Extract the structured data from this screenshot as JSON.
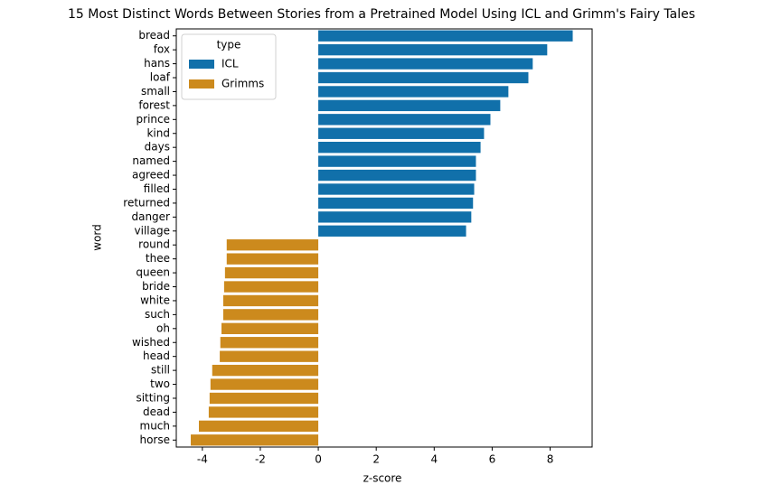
{
  "chart_data": {
    "type": "barh",
    "title": "15 Most Distinct Words Between Stories from a Pretrained Model Using ICL and Grimm's Fairy Tales",
    "x_label": "z-score",
    "y_label": "word",
    "categories": [
      "bread",
      "fox",
      "hans",
      "loaf",
      "small",
      "forest",
      "prince",
      "kind",
      "days",
      "named",
      "agreed",
      "filled",
      "returned",
      "danger",
      "village",
      "round",
      "thee",
      "queen",
      "bride",
      "white",
      "such",
      "oh",
      "wished",
      "head",
      "still",
      "two",
      "sitting",
      "dead",
      "much",
      "horse"
    ],
    "series": [
      {
        "name": "ICL",
        "color": "#1170aa",
        "values": [
          8.78,
          7.9,
          7.4,
          7.25,
          6.56,
          6.28,
          5.94,
          5.72,
          5.6,
          5.44,
          5.44,
          5.38,
          5.34,
          5.28,
          5.1,
          null,
          null,
          null,
          null,
          null,
          null,
          null,
          null,
          null,
          null,
          null,
          null,
          null,
          null,
          null
        ]
      },
      {
        "name": "Grimms",
        "color": "#cc8a1d",
        "values": [
          null,
          null,
          null,
          null,
          null,
          null,
          null,
          null,
          null,
          null,
          null,
          null,
          null,
          null,
          null,
          -3.16,
          -3.16,
          -3.22,
          -3.25,
          -3.28,
          -3.28,
          -3.34,
          -3.38,
          -3.4,
          -3.66,
          -3.72,
          -3.75,
          -3.78,
          -4.12,
          -4.4
        ]
      }
    ],
    "legend_title": "type",
    "legend": "upper left",
    "xlim": [
      -4.9,
      9.45
    ],
    "xticks": [
      -4,
      -2,
      0,
      2,
      4,
      6,
      8
    ],
    "grid": false
  }
}
